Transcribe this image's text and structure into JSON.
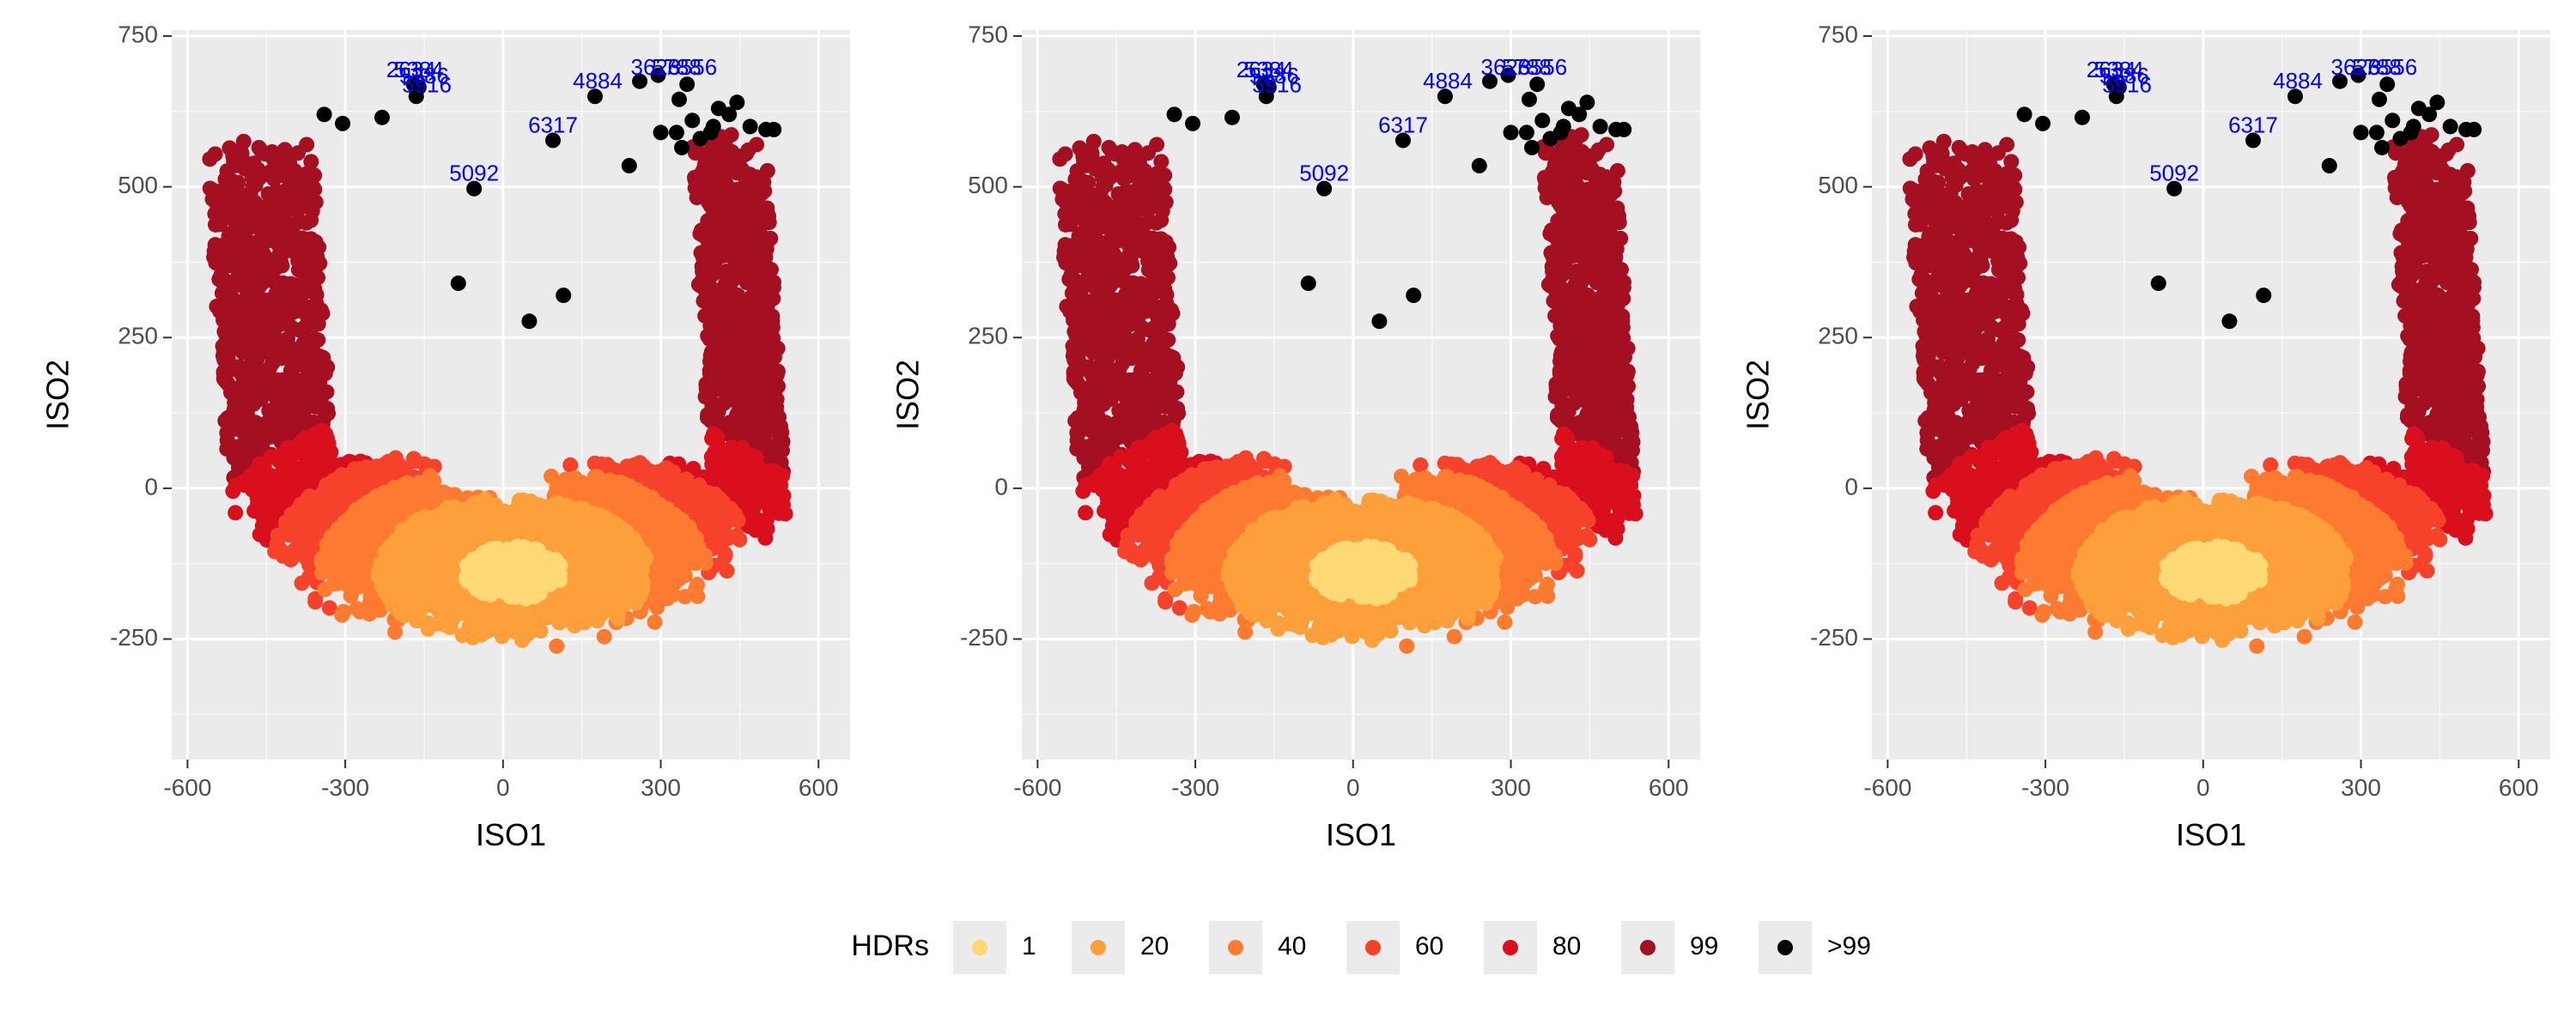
{
  "chart_data": [
    {
      "type": "scatter",
      "xlabel": "ISO1",
      "ylabel": "ISO2",
      "xlim": [
        -630,
        660
      ],
      "ylim": [
        -450,
        760
      ],
      "xticks": [
        -600,
        -300,
        0,
        300,
        600
      ],
      "xtick_labels": [
        "-600",
        "-300",
        "0",
        "300",
        "600"
      ],
      "yticks": [
        -250,
        0,
        250,
        500,
        750
      ],
      "ytick_labels": [
        "-250",
        "0",
        "250",
        "500",
        "750"
      ],
      "grid": true,
      "outlier_points": [
        {
          "x": -340,
          "y": 620
        },
        {
          "x": -305,
          "y": 605
        },
        {
          "x": -230,
          "y": 615
        },
        {
          "x": -170,
          "y": 670
        },
        {
          "x": -165,
          "y": 650
        },
        {
          "x": -160,
          "y": 665
        },
        {
          "x": -55,
          "y": 497
        },
        {
          "x": -85,
          "y": 340
        },
        {
          "x": 50,
          "y": 277
        },
        {
          "x": 115,
          "y": 320
        },
        {
          "x": 95,
          "y": 577
        },
        {
          "x": 175,
          "y": 650
        },
        {
          "x": 240,
          "y": 535
        },
        {
          "x": 260,
          "y": 675
        },
        {
          "x": 295,
          "y": 685
        },
        {
          "x": 300,
          "y": 590
        },
        {
          "x": 330,
          "y": 590
        },
        {
          "x": 335,
          "y": 645
        },
        {
          "x": 340,
          "y": 565
        },
        {
          "x": 350,
          "y": 670
        },
        {
          "x": 360,
          "y": 610
        },
        {
          "x": 375,
          "y": 580
        },
        {
          "x": 395,
          "y": 590
        },
        {
          "x": 400,
          "y": 600
        },
        {
          "x": 410,
          "y": 630
        },
        {
          "x": 430,
          "y": 620
        },
        {
          "x": 445,
          "y": 640
        },
        {
          "x": 470,
          "y": 600
        },
        {
          "x": 500,
          "y": 595
        },
        {
          "x": 515,
          "y": 595
        }
      ],
      "point_labels": [
        {
          "text": "2634",
          "x": -175,
          "y": 682
        },
        {
          "text": "5384",
          "x": -160,
          "y": 682
        },
        {
          "text": "5386",
          "x": -150,
          "y": 672
        },
        {
          "text": "5916",
          "x": -145,
          "y": 657
        },
        {
          "text": "5092",
          "x": -55,
          "y": 510
        },
        {
          "text": "6317",
          "x": 95,
          "y": 590
        },
        {
          "text": "4884",
          "x": 180,
          "y": 663
        },
        {
          "text": "3623",
          "x": 290,
          "y": 686
        },
        {
          "text": "5788",
          "x": 330,
          "y": 686
        },
        {
          "text": "6556",
          "x": 360,
          "y": 686
        }
      ]
    },
    {
      "type": "scatter",
      "xlabel": "ISO1",
      "ylabel": "ISO2",
      "xlim": [
        -630,
        660
      ],
      "ylim": [
        -450,
        760
      ],
      "xticks": [
        -600,
        -300,
        0,
        300,
        600
      ],
      "xtick_labels": [
        "-600",
        "-300",
        "0",
        "300",
        "600"
      ],
      "yticks": [
        -250,
        0,
        250,
        500,
        750
      ],
      "ytick_labels": [
        "-250",
        "0",
        "250",
        "500",
        "750"
      ],
      "grid": true,
      "outlier_points": [
        {
          "x": -340,
          "y": 620
        },
        {
          "x": -305,
          "y": 605
        },
        {
          "x": -230,
          "y": 615
        },
        {
          "x": -170,
          "y": 670
        },
        {
          "x": -165,
          "y": 650
        },
        {
          "x": -160,
          "y": 665
        },
        {
          "x": -55,
          "y": 497
        },
        {
          "x": -85,
          "y": 340
        },
        {
          "x": 50,
          "y": 277
        },
        {
          "x": 115,
          "y": 320
        },
        {
          "x": 95,
          "y": 577
        },
        {
          "x": 175,
          "y": 650
        },
        {
          "x": 240,
          "y": 535
        },
        {
          "x": 260,
          "y": 675
        },
        {
          "x": 295,
          "y": 685
        },
        {
          "x": 300,
          "y": 590
        },
        {
          "x": 330,
          "y": 590
        },
        {
          "x": 335,
          "y": 645
        },
        {
          "x": 340,
          "y": 565
        },
        {
          "x": 350,
          "y": 670
        },
        {
          "x": 360,
          "y": 610
        },
        {
          "x": 375,
          "y": 580
        },
        {
          "x": 395,
          "y": 590
        },
        {
          "x": 400,
          "y": 600
        },
        {
          "x": 410,
          "y": 630
        },
        {
          "x": 430,
          "y": 620
        },
        {
          "x": 445,
          "y": 640
        },
        {
          "x": 470,
          "y": 600
        },
        {
          "x": 500,
          "y": 595
        },
        {
          "x": 515,
          "y": 595
        }
      ],
      "point_labels": [
        {
          "text": "2634",
          "x": -175,
          "y": 682
        },
        {
          "text": "5384",
          "x": -160,
          "y": 682
        },
        {
          "text": "5386",
          "x": -150,
          "y": 672
        },
        {
          "text": "5916",
          "x": -145,
          "y": 657
        },
        {
          "text": "5092",
          "x": -55,
          "y": 510
        },
        {
          "text": "6317",
          "x": 95,
          "y": 590
        },
        {
          "text": "4884",
          "x": 180,
          "y": 663
        },
        {
          "text": "3623",
          "x": 290,
          "y": 686
        },
        {
          "text": "5788",
          "x": 330,
          "y": 686
        },
        {
          "text": "6556",
          "x": 360,
          "y": 686
        }
      ]
    },
    {
      "type": "scatter",
      "xlabel": "ISO1",
      "ylabel": "ISO2",
      "xlim": [
        -630,
        660
      ],
      "ylim": [
        -450,
        760
      ],
      "xticks": [
        -600,
        -300,
        0,
        300,
        600
      ],
      "xtick_labels": [
        "-600",
        "-300",
        "0",
        "300",
        "600"
      ],
      "yticks": [
        -250,
        0,
        250,
        500,
        750
      ],
      "ytick_labels": [
        "-250",
        "0",
        "250",
        "500",
        "750"
      ],
      "grid": true,
      "outlier_points": [
        {
          "x": -340,
          "y": 620
        },
        {
          "x": -305,
          "y": 605
        },
        {
          "x": -230,
          "y": 615
        },
        {
          "x": -170,
          "y": 670
        },
        {
          "x": -165,
          "y": 650
        },
        {
          "x": -160,
          "y": 665
        },
        {
          "x": -55,
          "y": 497
        },
        {
          "x": -85,
          "y": 340
        },
        {
          "x": 50,
          "y": 277
        },
        {
          "x": 115,
          "y": 320
        },
        {
          "x": 95,
          "y": 577
        },
        {
          "x": 175,
          "y": 650
        },
        {
          "x": 240,
          "y": 535
        },
        {
          "x": 260,
          "y": 675
        },
        {
          "x": 295,
          "y": 685
        },
        {
          "x": 300,
          "y": 590
        },
        {
          "x": 330,
          "y": 590
        },
        {
          "x": 335,
          "y": 645
        },
        {
          "x": 340,
          "y": 565
        },
        {
          "x": 350,
          "y": 670
        },
        {
          "x": 360,
          "y": 610
        },
        {
          "x": 375,
          "y": 580
        },
        {
          "x": 395,
          "y": 590
        },
        {
          "x": 400,
          "y": 600
        },
        {
          "x": 410,
          "y": 630
        },
        {
          "x": 430,
          "y": 620
        },
        {
          "x": 445,
          "y": 640
        },
        {
          "x": 470,
          "y": 600
        },
        {
          "x": 500,
          "y": 595
        },
        {
          "x": 515,
          "y": 595
        }
      ],
      "point_labels": [
        {
          "text": "2634",
          "x": -175,
          "y": 682
        },
        {
          "text": "5384",
          "x": -160,
          "y": 682
        },
        {
          "text": "5386",
          "x": -150,
          "y": 672
        },
        {
          "text": "5916",
          "x": -145,
          "y": 657
        },
        {
          "text": "5092",
          "x": -55,
          "y": 510
        },
        {
          "text": "6317",
          "x": 95,
          "y": 590
        },
        {
          "text": "4884",
          "x": 180,
          "y": 663
        },
        {
          "text": "3623",
          "x": 290,
          "y": 686
        },
        {
          "text": "5788",
          "x": 330,
          "y": 686
        },
        {
          "text": "6556",
          "x": 360,
          "y": 686
        }
      ]
    }
  ],
  "legend": {
    "title": "HDRs",
    "position": "bottom",
    "items": [
      {
        "label": "1",
        "color": "#fed976"
      },
      {
        "label": "20",
        "color": "#fd9f3a"
      },
      {
        "label": "40",
        "color": "#fc7b30"
      },
      {
        "label": "60",
        "color": "#f6422a"
      },
      {
        "label": "80",
        "color": "#da0f1d"
      },
      {
        "label": "99",
        "color": "#a50f22"
      },
      {
        "label": ">99",
        "color": "#000000"
      }
    ]
  },
  "colors": {
    "panel_background": "#ebebeb",
    "grid_major": "#ffffff",
    "point_label": "#0000ff",
    "axis_text": "#4d4d4d",
    "axis_title": "#000000"
  }
}
